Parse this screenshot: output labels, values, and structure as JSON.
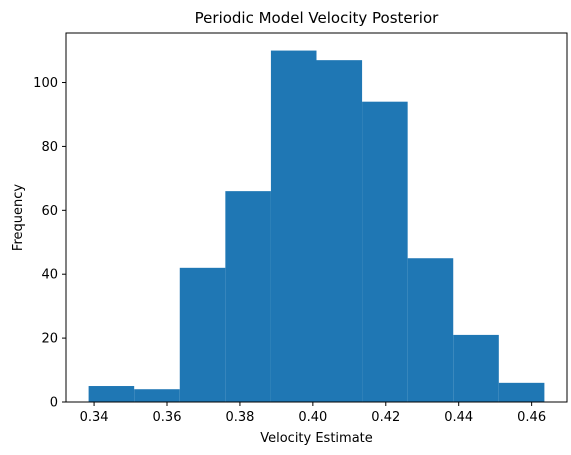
{
  "chart_data": {
    "type": "bar",
    "title": "Periodic Model Velocity Posterior",
    "xlabel": "Velocity Estimate",
    "ylabel": "Frequency",
    "bar_color": "#1f77b4",
    "bins": [
      {
        "x0": 0.3385,
        "x1": 0.351,
        "count": 5
      },
      {
        "x0": 0.351,
        "x1": 0.3635,
        "count": 4
      },
      {
        "x0": 0.3635,
        "x1": 0.376,
        "count": 42
      },
      {
        "x0": 0.376,
        "x1": 0.3885,
        "count": 66
      },
      {
        "x0": 0.3885,
        "x1": 0.401,
        "count": 110
      },
      {
        "x0": 0.401,
        "x1": 0.4135,
        "count": 107
      },
      {
        "x0": 0.4135,
        "x1": 0.426,
        "count": 94
      },
      {
        "x0": 0.426,
        "x1": 0.4385,
        "count": 45
      },
      {
        "x0": 0.4385,
        "x1": 0.451,
        "count": 21
      },
      {
        "x0": 0.451,
        "x1": 0.4635,
        "count": 6
      }
    ],
    "xlim": [
      0.3323,
      0.4697
    ],
    "ylim": [
      0,
      115.5
    ],
    "xticks": [
      0.34,
      0.36,
      0.38,
      0.4,
      0.42,
      0.44,
      0.46
    ],
    "xtick_labels": [
      "0.34",
      "0.36",
      "0.38",
      "0.40",
      "0.42",
      "0.44",
      "0.46"
    ],
    "yticks": [
      0,
      20,
      40,
      60,
      80,
      100
    ],
    "ytick_labels": [
      "0",
      "20",
      "40",
      "60",
      "80",
      "100"
    ],
    "grid": false
  }
}
